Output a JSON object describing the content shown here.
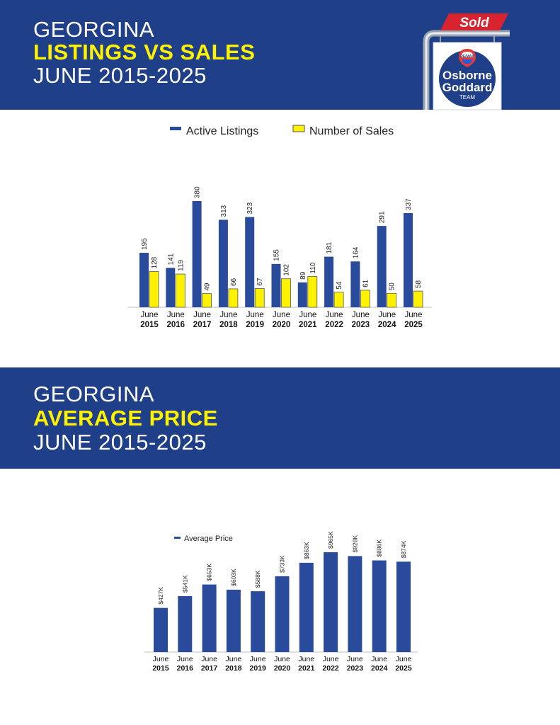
{
  "section1": {
    "title_line1": "GEORGINA",
    "title_line2": "LISTINGS VS SALES",
    "title_line3": "JUNE 2015-2025"
  },
  "section2": {
    "title_line1": "GEORGINA",
    "title_line2": "AVERAGE PRICE",
    "title_line3": "JUNE 2015-2025"
  },
  "logo": {
    "sold_text": "Sold",
    "brand_top": "RE/MAX",
    "name_line1": "Osborne",
    "name_line2": "Goddard",
    "name_line3": "TEAM"
  },
  "colors": {
    "banner": "#1f3f88",
    "highlight": "#fff200",
    "listings_bar": "#2a4a9c",
    "sales_bar": "#fff200",
    "sold_red": "#d8242f"
  },
  "chart_data": [
    {
      "type": "bar",
      "categories": [
        "June 2015",
        "June 2016",
        "June 2017",
        "June 2018",
        "June 2019",
        "June 2020",
        "June 2021",
        "June 2022",
        "June 2023",
        "June 2024",
        "June 2025"
      ],
      "category_lines": [
        [
          "June",
          "2015"
        ],
        [
          "June",
          "2016"
        ],
        [
          "June",
          "2017"
        ],
        [
          "June",
          "2018"
        ],
        [
          "June",
          "2019"
        ],
        [
          "June",
          "2020"
        ],
        [
          "June",
          "2021"
        ],
        [
          "June",
          "2022"
        ],
        [
          "June",
          "2023"
        ],
        [
          "June",
          "2024"
        ],
        [
          "June",
          "2025"
        ]
      ],
      "series": [
        {
          "name": "Active Listings",
          "values": [
            195,
            141,
            380,
            313,
            323,
            155,
            89,
            181,
            164,
            291,
            337
          ]
        },
        {
          "name": "Number of Sales",
          "values": [
            128,
            119,
            49,
            66,
            67,
            102,
            110,
            54,
            61,
            50,
            58
          ]
        }
      ],
      "ylim": [
        0,
        380
      ],
      "legend_position": "top"
    },
    {
      "type": "bar",
      "categories": [
        "June 2015",
        "June 2016",
        "June 2017",
        "June 2018",
        "June 2019",
        "June 2020",
        "June 2021",
        "June 2022",
        "June 2023",
        "June 2024",
        "June 2025"
      ],
      "category_lines": [
        [
          "June",
          "2015"
        ],
        [
          "June",
          "2016"
        ],
        [
          "June",
          "2017"
        ],
        [
          "June",
          "2018"
        ],
        [
          "June",
          "2019"
        ],
        [
          "June",
          "2020"
        ],
        [
          "June",
          "2021"
        ],
        [
          "June",
          "2022"
        ],
        [
          "June",
          "2023"
        ],
        [
          "June",
          "2024"
        ],
        [
          "June",
          "2025"
        ]
      ],
      "series": [
        {
          "name": "Average Price",
          "values": [
            427,
            541,
            653,
            603,
            588,
            733,
            863,
            965,
            928,
            886,
            874
          ],
          "labels": [
            "$427K",
            "$541K",
            "$653K",
            "$603K",
            "$588K",
            "$733K",
            "$863K",
            "$965K",
            "$928K",
            "$886K",
            "$874K"
          ]
        }
      ],
      "ylim": [
        0,
        965
      ],
      "legend_position": "top-left"
    }
  ]
}
